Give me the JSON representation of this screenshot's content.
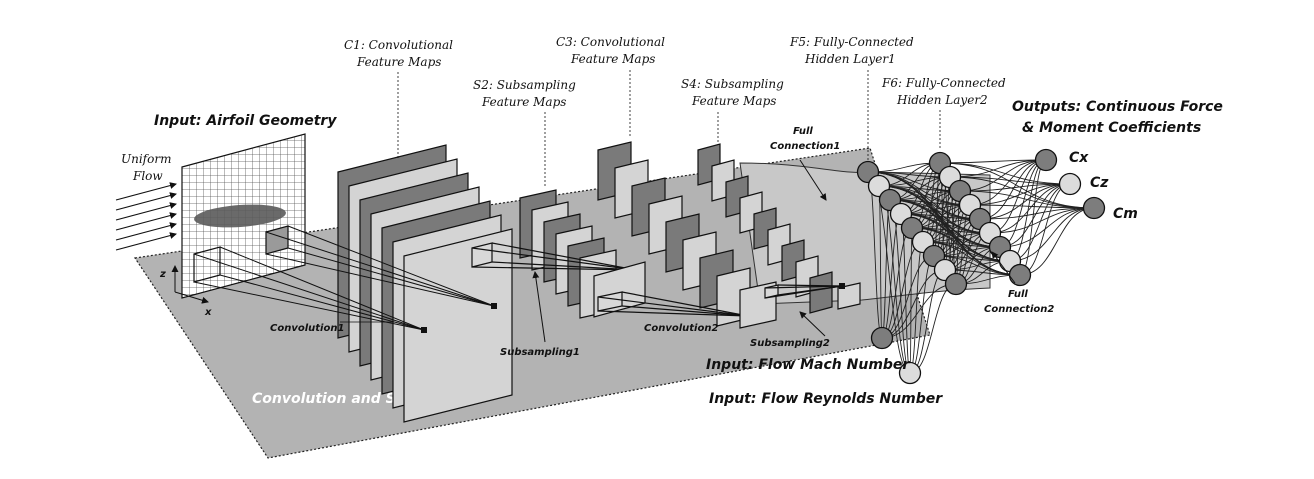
{
  "labels": {
    "input_geometry": "Input: Airfoil Geometry",
    "uniform_flow_1": "Uniform",
    "uniform_flow_2": "Flow",
    "axis_z": "z",
    "axis_x": "x",
    "c1_line1": "C1: Convolutional",
    "c1_line2": "Feature Maps",
    "s2_line1": "S2: Subsampling",
    "s2_line2": "Feature Maps",
    "c3_line1": "C3: Convolutional",
    "c3_line2": "Feature Maps",
    "s4_line1": "S4: Subsampling",
    "s4_line2": "Feature Maps",
    "f5_line1": "F5: Fully-Connected",
    "f5_line2": "Hidden Layer1",
    "f6_line1": "F6: Fully-Connected",
    "f6_line2": "Hidden Layer2",
    "outputs_line1": "Outputs: Continuous Force",
    "outputs_line2": "& Moment Coefficients",
    "out_cx": "Cx",
    "out_cz": "Cz",
    "out_cm": "Cm",
    "full_conn1_line1": "Full",
    "full_conn1_line2": "Connection1",
    "full_conn2_line1": "Full",
    "full_conn2_line2": "Connection2",
    "convolution1": "Convolution1",
    "subsampling1": "Subsampling1",
    "convolution2": "Convolution2",
    "subsampling2": "Subsampling2",
    "mach_input": "Input: Flow Mach Number",
    "reynolds_input": "Input: Flow Reynolds Number",
    "conv_sampling_region": "Convolution and Sampling"
  },
  "colors": {
    "plane": "#b3b3b3",
    "dark_map": "#7a7a7a",
    "light_map": "#d4d4d4",
    "fc_region": "#c8c8c8",
    "dark_node": "#7d7d7d",
    "light_node": "#dcdcdc",
    "stroke": "#111111"
  }
}
